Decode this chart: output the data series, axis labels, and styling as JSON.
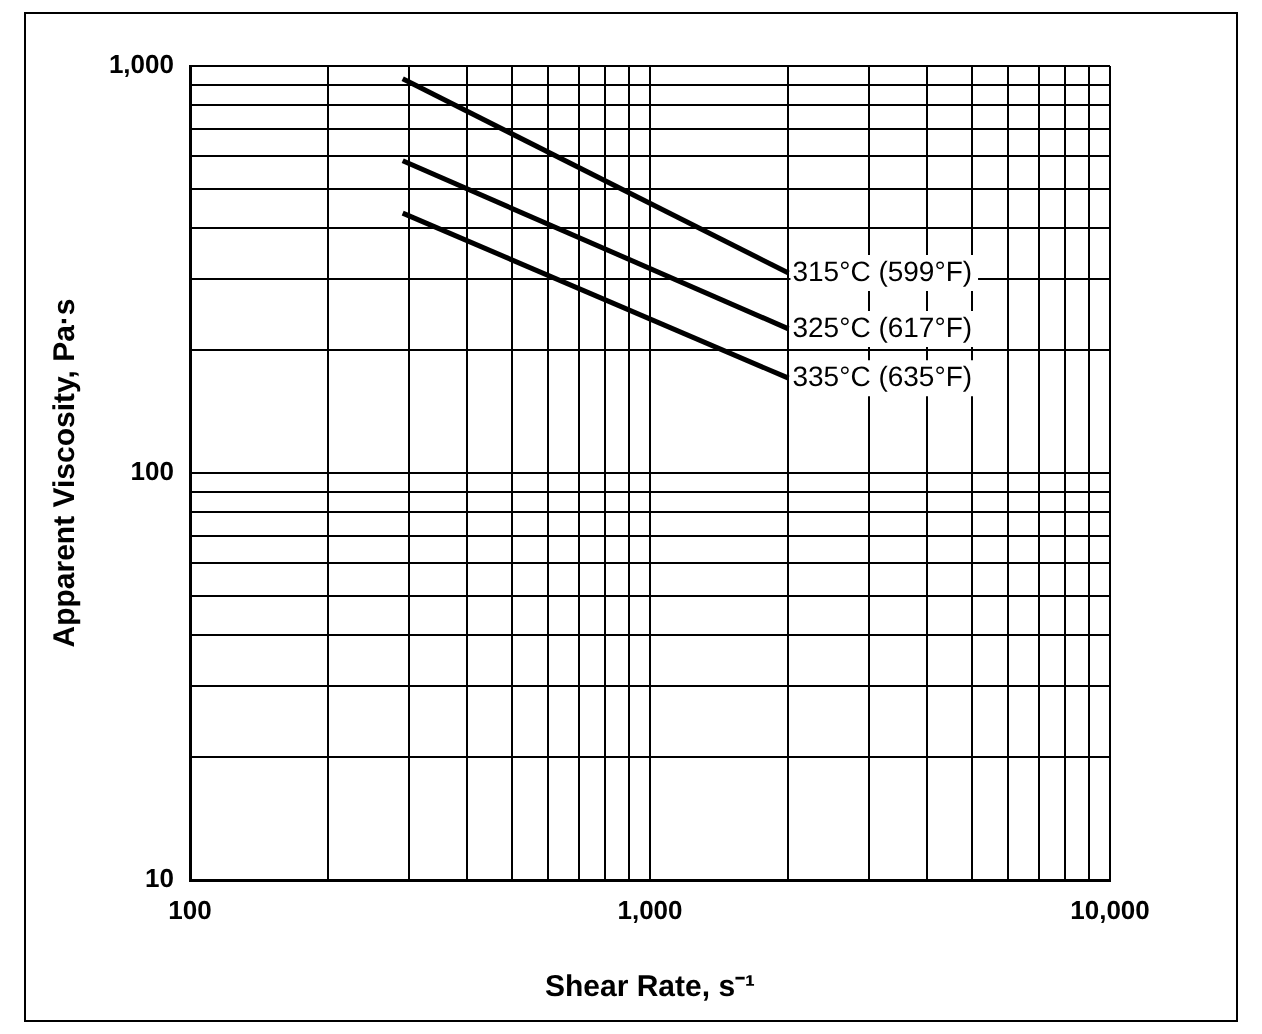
{
  "chart_data": {
    "type": "line",
    "xlabel": "Shear Rate, s⁻¹",
    "ylabel": "Apparent Viscosity, Pa·s",
    "log": "xy",
    "grid": true,
    "legend": false,
    "xlim": [
      100,
      10000
    ],
    "xticks": [
      {
        "value": 100,
        "label": "100"
      },
      {
        "value": 200,
        "label": null
      },
      {
        "value": 300,
        "label": null
      },
      {
        "value": 400,
        "label": null
      },
      {
        "value": 500,
        "label": null
      },
      {
        "value": 600,
        "label": null
      },
      {
        "value": 700,
        "label": null
      },
      {
        "value": 800,
        "label": null
      },
      {
        "value": 900,
        "label": null
      },
      {
        "value": 1000,
        "label": "1,000"
      },
      {
        "value": 2000,
        "label": null
      },
      {
        "value": 3000,
        "label": null
      },
      {
        "value": 4000,
        "label": null
      },
      {
        "value": 5000,
        "label": null
      },
      {
        "value": 6000,
        "label": null
      },
      {
        "value": 7000,
        "label": null
      },
      {
        "value": 8000,
        "label": null
      },
      {
        "value": 9000,
        "label": null
      },
      {
        "value": 10000,
        "label": "10,000"
      }
    ],
    "ylim": [
      10,
      1000
    ],
    "yticks": [
      10,
      {
        "value": 20,
        "label": null
      },
      {
        "value": 30,
        "label": null
      },
      {
        "value": 40,
        "label": null
      },
      {
        "value": 50,
        "label": null
      },
      {
        "value": 60,
        "label": null
      },
      {
        "value": 70,
        "label": null
      },
      {
        "value": 80,
        "label": null
      },
      {
        "value": 90,
        "label": null
      },
      100,
      {
        "value": 200,
        "label": null
      },
      {
        "value": 300,
        "label": null
      },
      {
        "value": 400,
        "label": null
      },
      {
        "value": 500,
        "label": null
      },
      {
        "value": 600,
        "label": null
      },
      {
        "value": 700,
        "label": null
      },
      {
        "value": 800,
        "label": null
      },
      {
        "value": 900,
        "label": null
      },
      {
        "value": 1000,
        "label": "1,000"
      }
    ],
    "x": [
      290,
      2000
    ],
    "series": [
      {
        "name": "315°C (599°F)",
        "color": "#000000",
        "values": [
          930,
          310
        ]
      },
      {
        "name": "325°C (617°F)",
        "color": "#000000",
        "values": [
          585,
          226
        ]
      },
      {
        "name": "335°C (635°F)",
        "color": "#000000",
        "values": [
          435,
          171
        ]
      }
    ]
  }
}
